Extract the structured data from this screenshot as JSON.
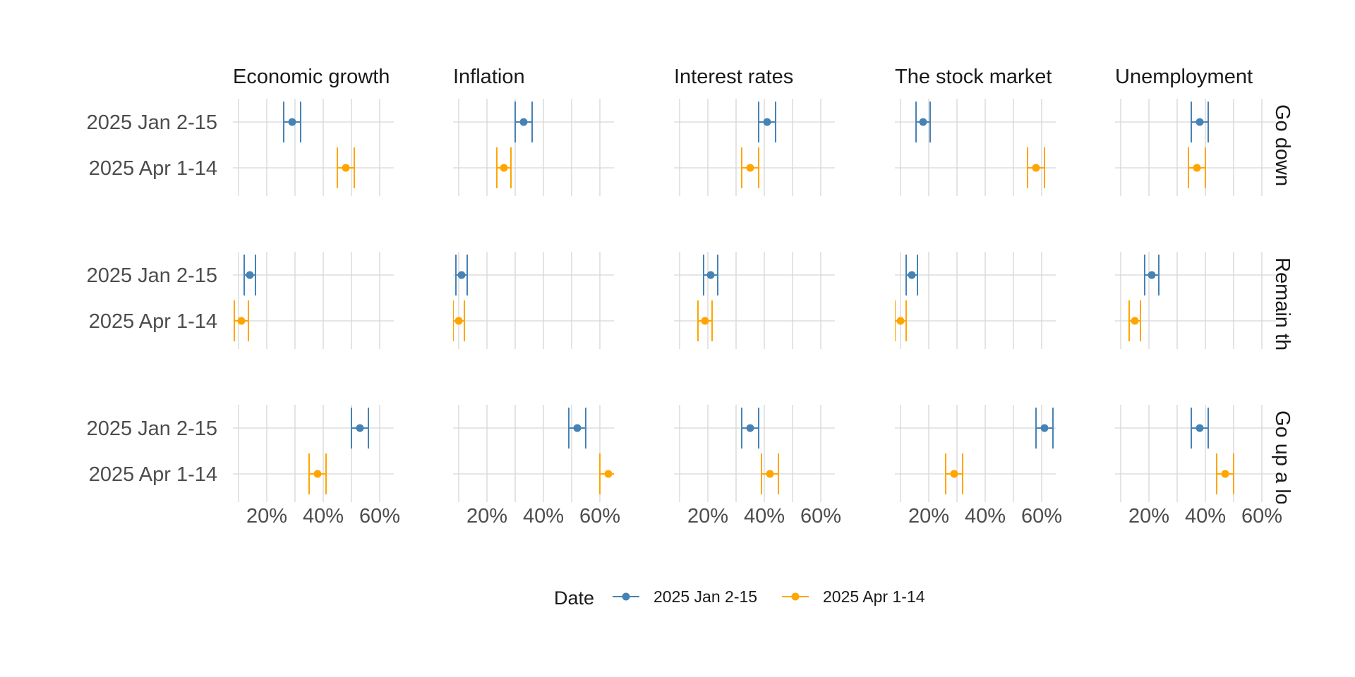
{
  "chart_data": {
    "type": "scatter",
    "title": "",
    "xlabel": "",
    "ylabel": "",
    "x_axis": {
      "min": 8,
      "max": 65,
      "ticks": [
        20,
        40,
        60
      ],
      "tick_labels": [
        "20%",
        "40%",
        "60%"
      ]
    },
    "facet_columns": [
      "Economic growth",
      "Inflation",
      "Interest rates",
      "The stock market",
      "Unemployment"
    ],
    "facet_rows": [
      "Go down",
      "Remain the same",
      "Go up a lot"
    ],
    "categories": [
      "2025 Jan 2-15",
      "2025 Apr 1-14"
    ],
    "legend": {
      "title": "Date",
      "position": "bottom"
    },
    "series": [
      {
        "name": "2025 Jan 2-15",
        "color": "#4682b4",
        "points": {
          "Go down": [
            [
              29,
              3
            ],
            [
              33,
              3
            ],
            [
              41,
              3
            ],
            [
              18,
              2.5
            ],
            [
              38,
              3
            ]
          ],
          "Remain the same": [
            [
              14,
              2
            ],
            [
              11,
              2
            ],
            [
              21,
              2.5
            ],
            [
              14,
              2
            ],
            [
              21,
              2.5
            ]
          ],
          "Go up a lot": [
            [
              53,
              3
            ],
            [
              52,
              3
            ],
            [
              35,
              3
            ],
            [
              61,
              3
            ],
            [
              38,
              3
            ]
          ]
        }
      },
      {
        "name": "2025 Apr 1-14",
        "color": "#ffa500",
        "points": {
          "Go down": [
            [
              48,
              3
            ],
            [
              26,
              2.5
            ],
            [
              35,
              3
            ],
            [
              58,
              3
            ],
            [
              37,
              3
            ]
          ],
          "Remain the same": [
            [
              11,
              2.5
            ],
            [
              10,
              2
            ],
            [
              19,
              2.5
            ],
            [
              10,
              2
            ],
            [
              15,
              2
            ]
          ],
          "Go up a lot": [
            [
              38,
              3
            ],
            [
              63,
              3
            ],
            [
              42,
              3
            ],
            [
              29,
              3
            ],
            [
              47,
              3
            ]
          ]
        }
      }
    ]
  }
}
